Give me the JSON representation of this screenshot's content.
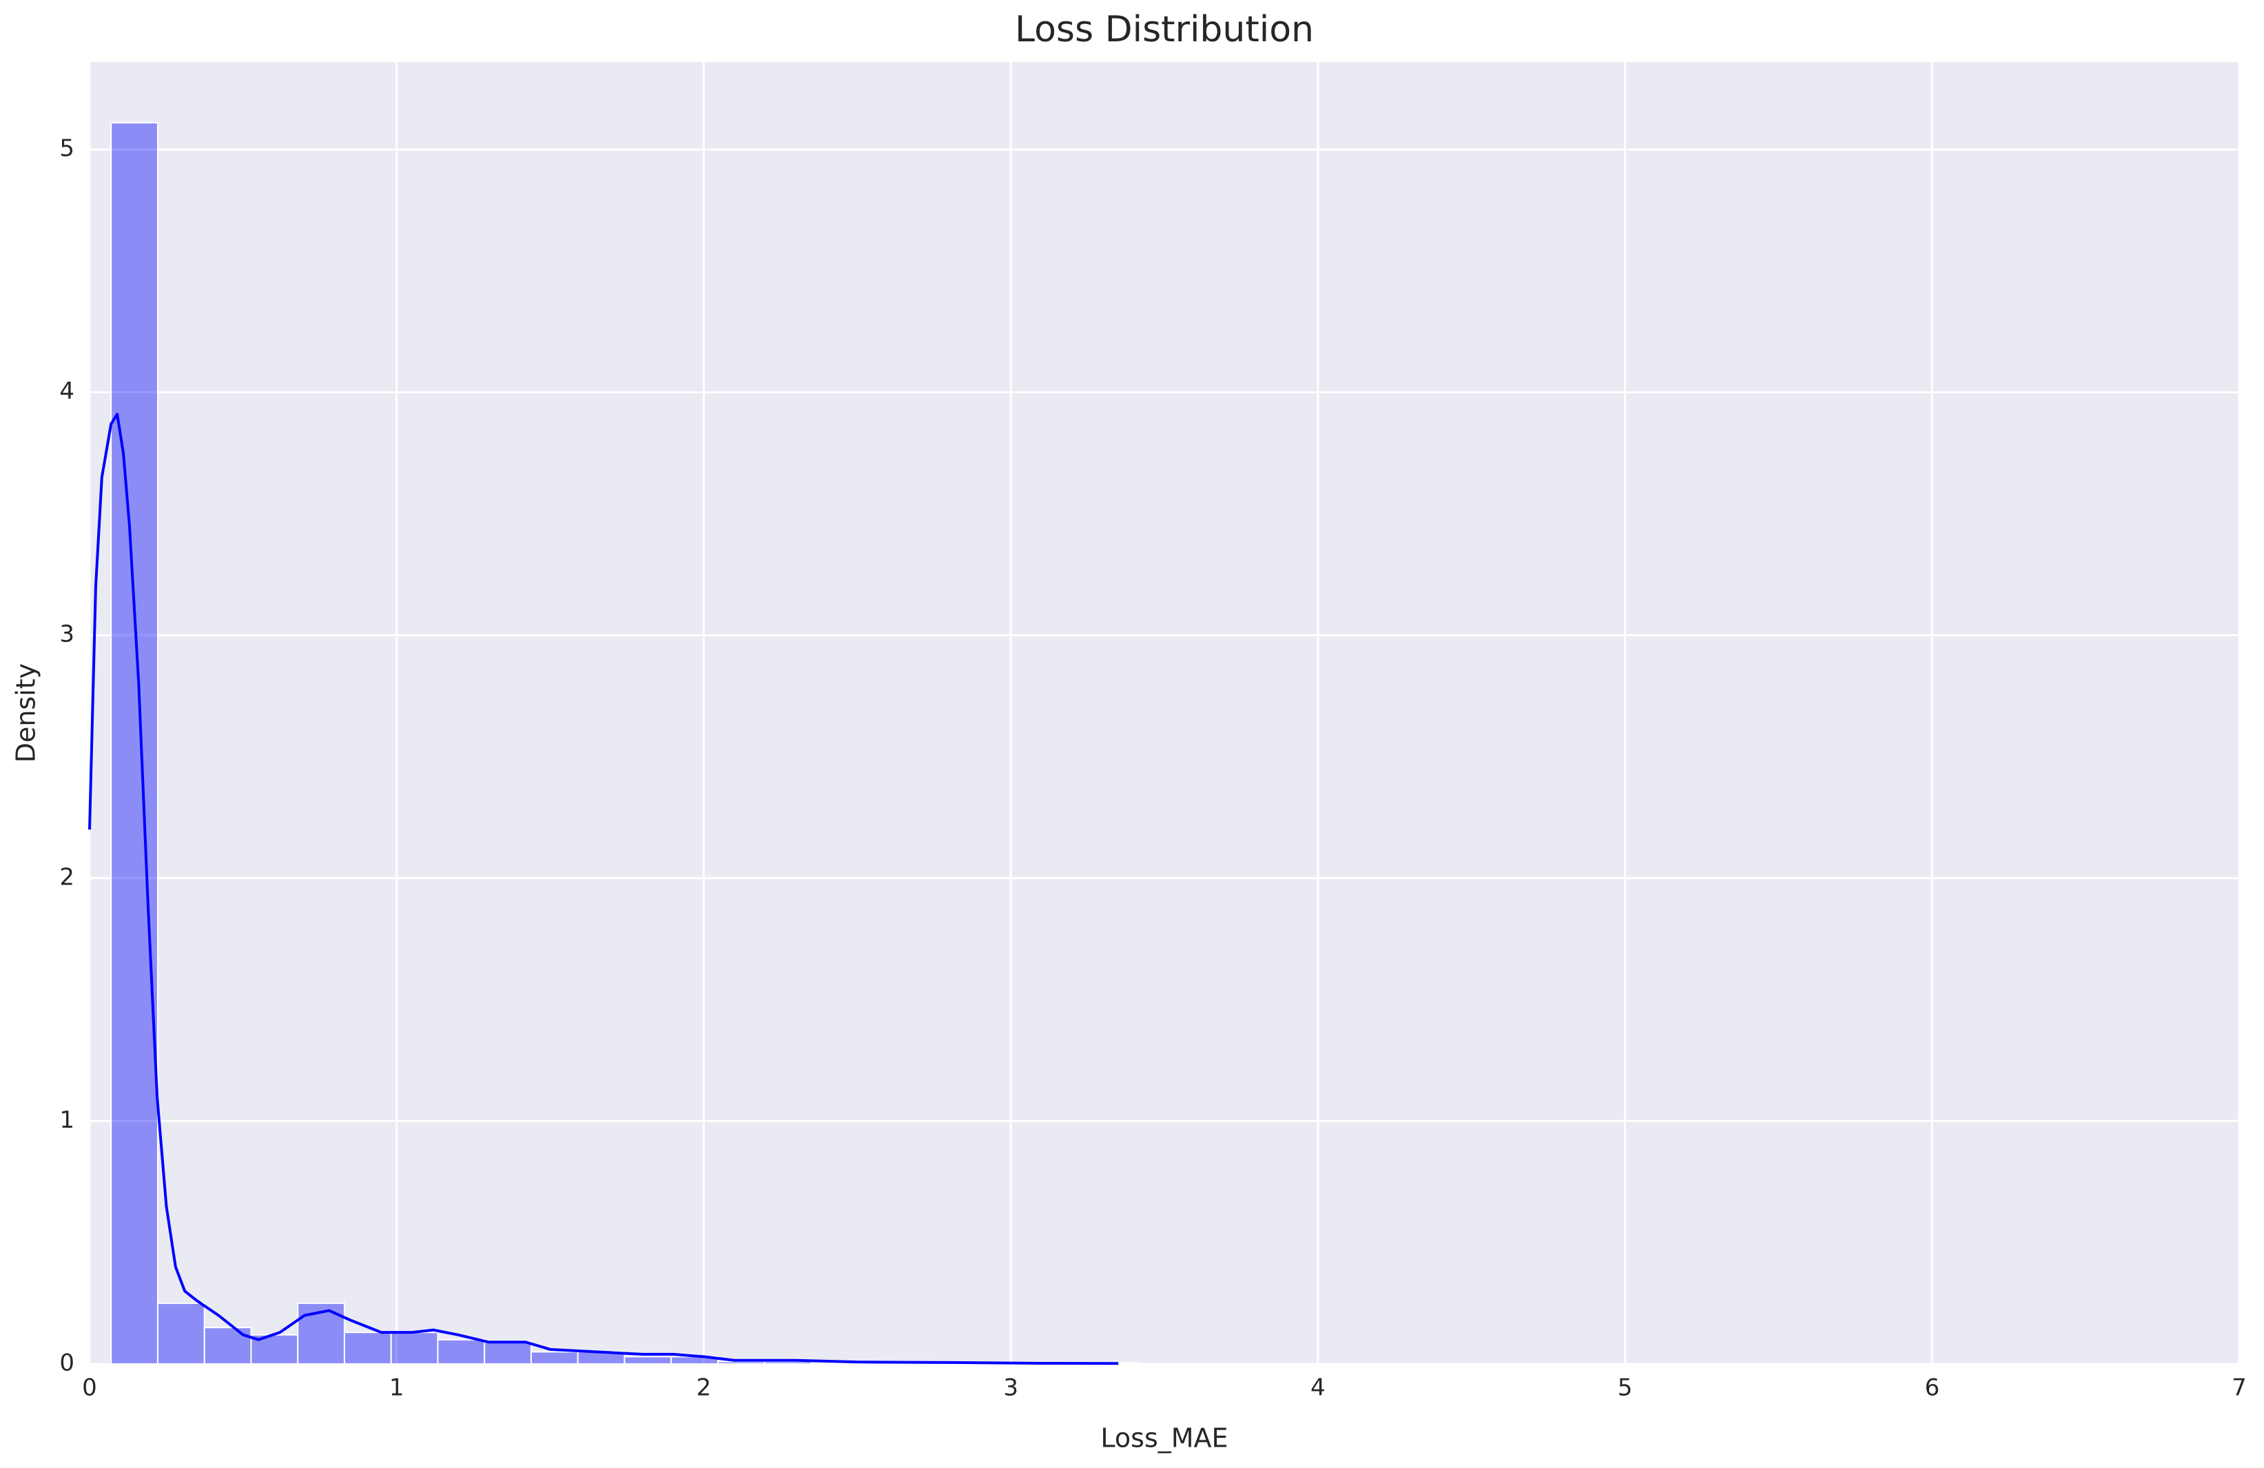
{
  "chart_data": {
    "type": "histogram",
    "title": "Loss Distribution",
    "x_label": "Loss_MAE",
    "y_label": "Density",
    "bins": [
      0.07,
      0.222,
      0.374,
      0.526,
      0.678,
      0.83,
      0.982,
      1.134,
      1.286,
      1.438,
      1.59,
      1.742,
      1.894,
      2.046,
      2.198,
      2.35,
      2.502,
      2.654,
      2.806,
      2.958,
      3.11,
      3.262,
      3.414
    ],
    "counts": [
      5.11,
      0.25,
      0.15,
      0.12,
      0.25,
      0.13,
      0.13,
      0.1,
      0.09,
      0.05,
      0.05,
      0.03,
      0.03,
      0.01,
      0.01,
      0.005,
      0.005,
      0,
      0,
      0,
      0,
      0.005
    ],
    "color": "#0000ff",
    "kde": {
      "x": [
        0,
        0.02,
        0.04,
        0.07,
        0.09,
        0.11,
        0.13,
        0.16,
        0.19,
        0.22,
        0.25,
        0.28,
        0.31,
        0.35,
        0.42,
        0.5,
        0.55,
        0.62,
        0.7,
        0.78,
        0.85,
        0.95,
        1.05,
        1.12,
        1.2,
        1.3,
        1.42,
        1.5,
        1.65,
        1.8,
        1.9,
        2.0,
        2.1,
        2.3,
        2.5,
        2.8,
        3.1,
        3.35
      ],
      "y": [
        2.2,
        3.2,
        3.65,
        3.87,
        3.91,
        3.75,
        3.45,
        2.8,
        1.9,
        1.1,
        0.65,
        0.4,
        0.3,
        0.26,
        0.2,
        0.12,
        0.1,
        0.13,
        0.2,
        0.22,
        0.18,
        0.13,
        0.13,
        0.14,
        0.12,
        0.09,
        0.09,
        0.06,
        0.05,
        0.04,
        0.04,
        0.03,
        0.015,
        0.015,
        0.008,
        0.006,
        0.003,
        0.002
      ]
    },
    "xlim": [
      0,
      7
    ],
    "ylim": [
      0,
      5.36
    ],
    "xticks": [
      0,
      1,
      2,
      3,
      4,
      5,
      6,
      7
    ],
    "yticks": [
      0,
      1,
      2,
      3,
      4,
      5
    ],
    "grid": true
  }
}
